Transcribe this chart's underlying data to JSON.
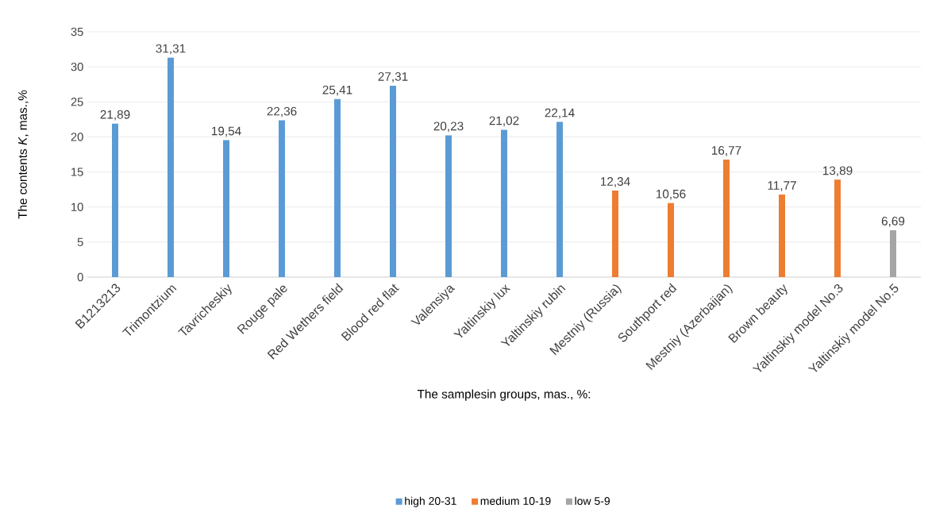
{
  "chart_data": {
    "type": "bar",
    "xlabel": "The samplesin groups, mas., %:",
    "ylabel": "The contents *K*, mas.,%",
    "categories": [
      "B1213213",
      "Trimontzium",
      "Tavricheskiy",
      "Rouge pale",
      "Red Wethers field",
      "Blood red flat",
      "Valensiya",
      "Yaltinskiy lux",
      "Yaltinskiy rubin",
      "Mestniy (Russia)",
      "Southport red",
      "Mestniy (Azerbaijan)",
      "Brown beauty",
      "Yaltinskiy model No.3",
      "Yaltinskiy model No.5"
    ],
    "series": [
      {
        "name": "high 20-31",
        "color": "#5b9bd5",
        "values": [
          21.89,
          31.31,
          19.54,
          22.36,
          25.41,
          27.31,
          20.23,
          21.02,
          22.14,
          null,
          null,
          null,
          null,
          null,
          null
        ],
        "value_labels": [
          "21,89",
          "31,31",
          "19,54",
          "22,36",
          "25,41",
          "27,31",
          "20,23",
          "21,02",
          "22,14",
          null,
          null,
          null,
          null,
          null,
          null
        ]
      },
      {
        "name": "medium 10-19",
        "color": "#ed7d31",
        "values": [
          null,
          null,
          null,
          null,
          null,
          null,
          null,
          null,
          null,
          12.34,
          10.56,
          16.77,
          11.77,
          13.89,
          null
        ],
        "value_labels": [
          null,
          null,
          null,
          null,
          null,
          null,
          null,
          null,
          null,
          "12,34",
          "10,56",
          "16,77",
          "11,77",
          "13,89",
          null
        ]
      },
      {
        "name": "low 5-9",
        "color": "#a5a5a5",
        "values": [
          null,
          null,
          null,
          null,
          null,
          null,
          null,
          null,
          null,
          null,
          null,
          null,
          null,
          null,
          6.69
        ],
        "value_labels": [
          null,
          null,
          null,
          null,
          null,
          null,
          null,
          null,
          null,
          null,
          null,
          null,
          null,
          null,
          "6,69"
        ]
      }
    ],
    "ylim": [
      0,
      35
    ],
    "yticks": [
      0,
      5,
      10,
      15,
      20,
      25,
      30,
      35
    ],
    "grid": "y",
    "legend": "bottom"
  }
}
